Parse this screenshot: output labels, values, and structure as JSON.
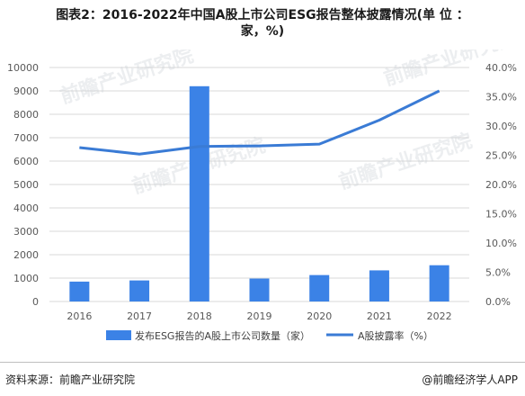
{
  "title_line1": "图表2：2016-2022年中国A股上市公司ESG报告整体披露情况(单 位 ：",
  "title_line2": "家，%)",
  "source": "资料来源：前瞻产业研究院",
  "credit": "@前瞻经济学人APP",
  "watermark": "前瞻产业研究院",
  "colors": {
    "bar": "#3b82e6",
    "line": "#3a7bd5",
    "grid": "#d9d9d9",
    "axis_text": "#595959"
  },
  "chart_data": {
    "type": "bar",
    "categories": [
      "2016",
      "2017",
      "2018",
      "2019",
      "2020",
      "2021",
      "2022"
    ],
    "series": [
      {
        "name": "发布ESG报告的A股上市公司数量（家）",
        "type": "bar",
        "axis": "left",
        "values": [
          850,
          900,
          9200,
          980,
          1130,
          1330,
          1550
        ]
      },
      {
        "name": "A股披露率（%）",
        "type": "line",
        "axis": "right",
        "values": [
          26.3,
          25.2,
          26.5,
          26.6,
          26.9,
          31.0,
          36.0
        ]
      }
    ],
    "yleft": {
      "ylim": [
        0,
        10000
      ],
      "ticks": [
        "0",
        "1000",
        "2000",
        "3000",
        "4000",
        "5000",
        "6000",
        "7000",
        "8000",
        "9000",
        "10000"
      ]
    },
    "yright": {
      "ylim": [
        0,
        40
      ],
      "ticks": [
        "0.0%",
        "5.0%",
        "10.0%",
        "15.0%",
        "20.0%",
        "25.0%",
        "30.0%",
        "35.0%",
        "40.0%"
      ]
    },
    "grid": true,
    "legend": "bottom"
  }
}
